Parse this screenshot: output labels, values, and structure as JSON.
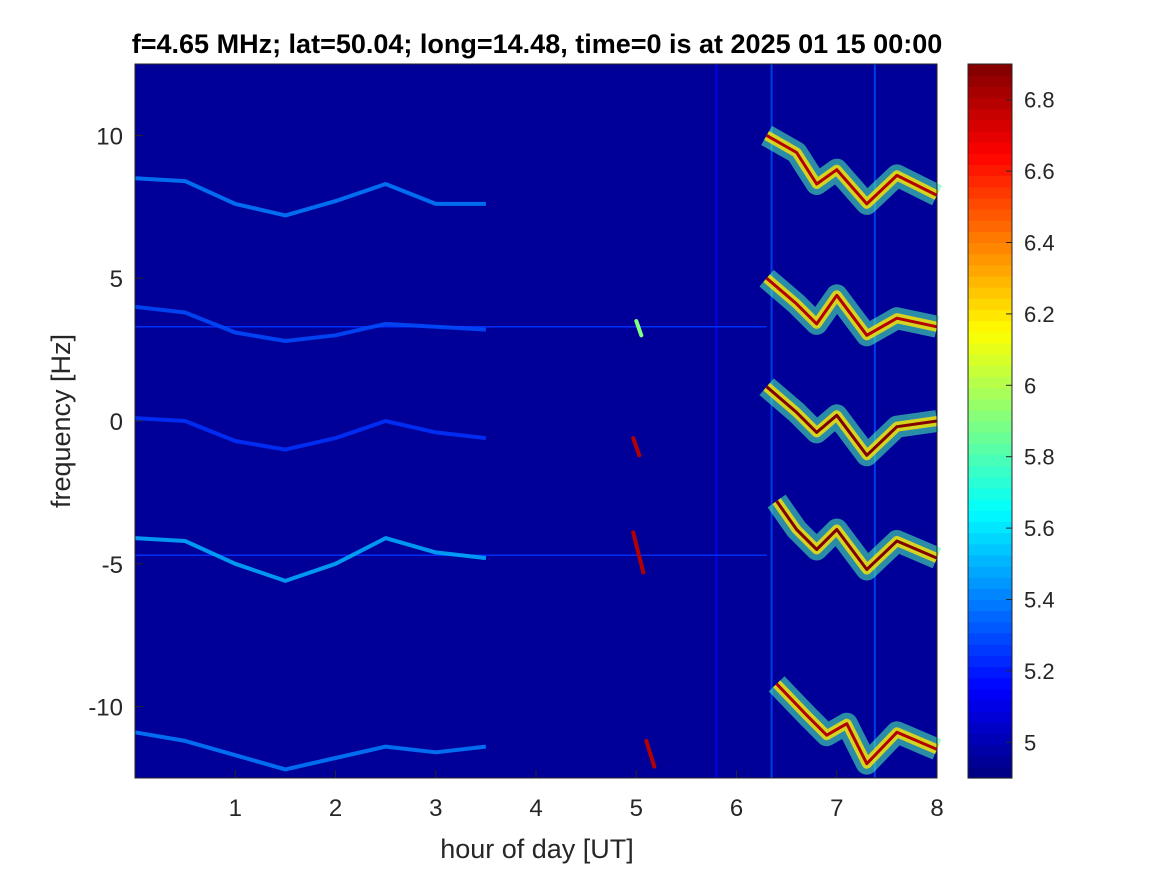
{
  "chart_data": {
    "type": "heatmap",
    "title": "f=4.65 MHz;  lat=50.04; long=14.48, time=0 is at 2025 01 15 00:00",
    "xlabel": "hour of day [UT]",
    "ylabel": "frequency [Hz]",
    "xlim": [
      0,
      8
    ],
    "ylim": [
      -12.5,
      12.5
    ],
    "xticks": [
      1,
      2,
      3,
      4,
      5,
      6,
      7,
      8
    ],
    "xtick_labels": [
      "1",
      "2",
      "3",
      "4",
      "5",
      "6",
      "7",
      "8"
    ],
    "yticks": [
      -10,
      -5,
      0,
      5,
      10
    ],
    "ytick_labels": [
      "-10",
      "-5",
      "0",
      "5",
      "10"
    ],
    "colorbar": {
      "colormap": "jet",
      "range": [
        4.9,
        6.9
      ],
      "ticks": [
        5,
        5.2,
        5.4,
        5.6,
        5.8,
        6,
        6.2,
        6.4,
        6.6,
        6.8
      ],
      "tick_labels": [
        "5",
        "5.2",
        "5.4",
        "5.6",
        "5.8",
        "6",
        "6.2",
        "6.4",
        "6.6",
        "6.8"
      ]
    },
    "background_value": 4.95,
    "traces": [
      {
        "band": "8 Hz",
        "points": [
          [
            0.0,
            8.5
          ],
          [
            0.5,
            8.4
          ],
          [
            1.0,
            7.6
          ],
          [
            1.5,
            7.2
          ],
          [
            2.0,
            7.7
          ],
          [
            2.5,
            8.3
          ],
          [
            3.0,
            7.6
          ],
          [
            3.5,
            7.6
          ]
        ],
        "value": 5.4
      },
      {
        "band": "4 Hz",
        "points": [
          [
            0.0,
            4.0
          ],
          [
            0.5,
            3.8
          ],
          [
            1.0,
            3.1
          ],
          [
            1.5,
            2.8
          ],
          [
            2.0,
            3.0
          ],
          [
            2.5,
            3.4
          ],
          [
            3.0,
            3.3
          ],
          [
            3.5,
            3.2
          ]
        ],
        "value": 5.3
      },
      {
        "band": "0 Hz",
        "points": [
          [
            0.0,
            0.1
          ],
          [
            0.5,
            0.0
          ],
          [
            1.0,
            -0.7
          ],
          [
            1.5,
            -1.0
          ],
          [
            2.0,
            -0.6
          ],
          [
            2.5,
            0.0
          ],
          [
            3.0,
            -0.4
          ],
          [
            3.5,
            -0.6
          ]
        ],
        "value": 5.25
      },
      {
        "band": "-4 Hz",
        "points": [
          [
            0.0,
            -4.1
          ],
          [
            0.5,
            -4.2
          ],
          [
            1.0,
            -5.0
          ],
          [
            1.5,
            -5.6
          ],
          [
            2.0,
            -5.0
          ],
          [
            2.5,
            -4.1
          ],
          [
            3.0,
            -4.6
          ],
          [
            3.5,
            -4.8
          ]
        ],
        "value": 5.5
      },
      {
        "band": "-11 Hz",
        "points": [
          [
            0.0,
            -10.9
          ],
          [
            0.5,
            -11.2
          ],
          [
            1.0,
            -11.7
          ],
          [
            1.5,
            -12.2
          ],
          [
            2.0,
            -11.8
          ],
          [
            2.5,
            -11.4
          ],
          [
            3.0,
            -11.6
          ],
          [
            3.5,
            -11.4
          ]
        ],
        "value": 5.4
      }
    ],
    "dawn_traces": [
      {
        "band": "8 Hz",
        "points": [
          [
            6.3,
            10.0
          ],
          [
            6.6,
            9.4
          ],
          [
            6.8,
            8.3
          ],
          [
            7.0,
            8.8
          ],
          [
            7.3,
            7.6
          ],
          [
            7.6,
            8.6
          ],
          [
            8.0,
            7.9
          ]
        ],
        "value": 6.8
      },
      {
        "band": "4 Hz",
        "points": [
          [
            6.3,
            5.0
          ],
          [
            6.6,
            4.1
          ],
          [
            6.8,
            3.4
          ],
          [
            7.0,
            4.4
          ],
          [
            7.3,
            3.0
          ],
          [
            7.6,
            3.6
          ],
          [
            8.0,
            3.3
          ]
        ],
        "value": 6.8
      },
      {
        "band": "0 Hz",
        "points": [
          [
            6.3,
            1.2
          ],
          [
            6.6,
            0.3
          ],
          [
            6.8,
            -0.4
          ],
          [
            7.0,
            0.2
          ],
          [
            7.3,
            -1.2
          ],
          [
            7.6,
            -0.2
          ],
          [
            8.0,
            0.0
          ]
        ],
        "value": 6.9
      },
      {
        "band": "-4 Hz",
        "points": [
          [
            6.4,
            -2.8
          ],
          [
            6.6,
            -3.8
          ],
          [
            6.8,
            -4.5
          ],
          [
            7.0,
            -3.8
          ],
          [
            7.3,
            -5.2
          ],
          [
            7.6,
            -4.2
          ],
          [
            8.0,
            -4.8
          ]
        ],
        "value": 6.9
      },
      {
        "band": "-11 Hz",
        "points": [
          [
            6.4,
            -9.2
          ],
          [
            6.7,
            -10.3
          ],
          [
            6.9,
            -11.0
          ],
          [
            7.1,
            -10.6
          ],
          [
            7.3,
            -12.0
          ],
          [
            7.6,
            -10.9
          ],
          [
            8.0,
            -11.5
          ]
        ],
        "value": 6.8
      }
    ],
    "spikes": [
      {
        "points": [
          [
            5.0,
            3.5
          ],
          [
            5.05,
            3.0
          ]
        ],
        "value": 5.9
      },
      {
        "points": [
          [
            4.97,
            -0.6
          ],
          [
            5.03,
            -1.2
          ]
        ],
        "value": 6.8
      },
      {
        "points": [
          [
            4.97,
            -3.9
          ],
          [
            5.07,
            -5.3
          ]
        ],
        "value": 6.8
      },
      {
        "points": [
          [
            5.1,
            -11.2
          ],
          [
            5.18,
            -12.1
          ]
        ],
        "value": 6.8
      }
    ],
    "hlines": [
      {
        "y": 3.3,
        "x": [
          0.0,
          6.3
        ],
        "value": 5.25
      },
      {
        "y": -4.7,
        "x": [
          0.0,
          6.3
        ],
        "value": 5.25
      }
    ],
    "vlines": [
      {
        "x": 5.8,
        "value": 5.15
      },
      {
        "x": 6.35,
        "value": 5.3
      },
      {
        "x": 7.38,
        "value": 5.3
      }
    ]
  }
}
